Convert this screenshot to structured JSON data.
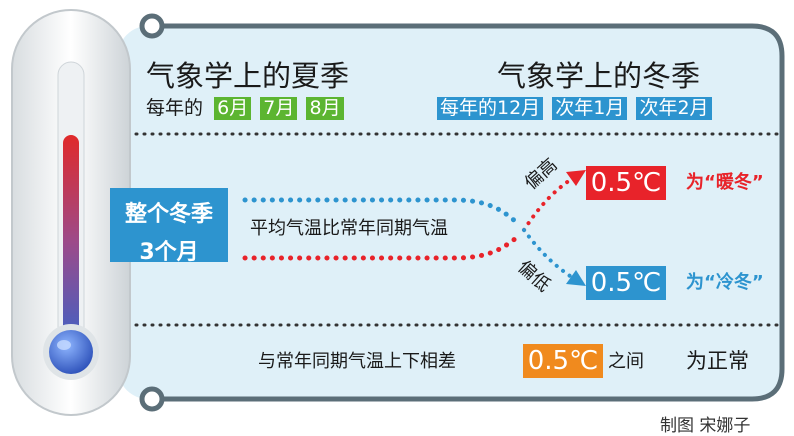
{
  "summer": {
    "title": "气象学上的夏季",
    "prefix": "每年的",
    "months": [
      "6月",
      "7月",
      "8月"
    ]
  },
  "winter": {
    "title": "气象学上的冬季",
    "months": [
      "每年的12月",
      "次年1月",
      "次年2月"
    ]
  },
  "winter_span": {
    "line1": "整个冬季",
    "line2": "3个月"
  },
  "comparison": "平均气温比常年同期气温",
  "higher": {
    "label": "偏高",
    "value": "0.5℃",
    "result": "为“暖冬”"
  },
  "lower": {
    "label": "偏低",
    "value": "0.5℃",
    "result": "为“冷冬”"
  },
  "normal": {
    "text": "与常年同期气温上下相差",
    "value": "0.5℃",
    "suffix": "之间",
    "result": "为正常"
  },
  "credit": "制图 宋娜子",
  "colors": {
    "frame": "#5b6e78",
    "panel": "#dff0f8",
    "green": "#5cb531",
    "blue": "#2d94cf",
    "red": "#e8232a",
    "warm_text": "#e8232a",
    "cold_text": "#2d94cf",
    "orange": "#f08a1e"
  }
}
